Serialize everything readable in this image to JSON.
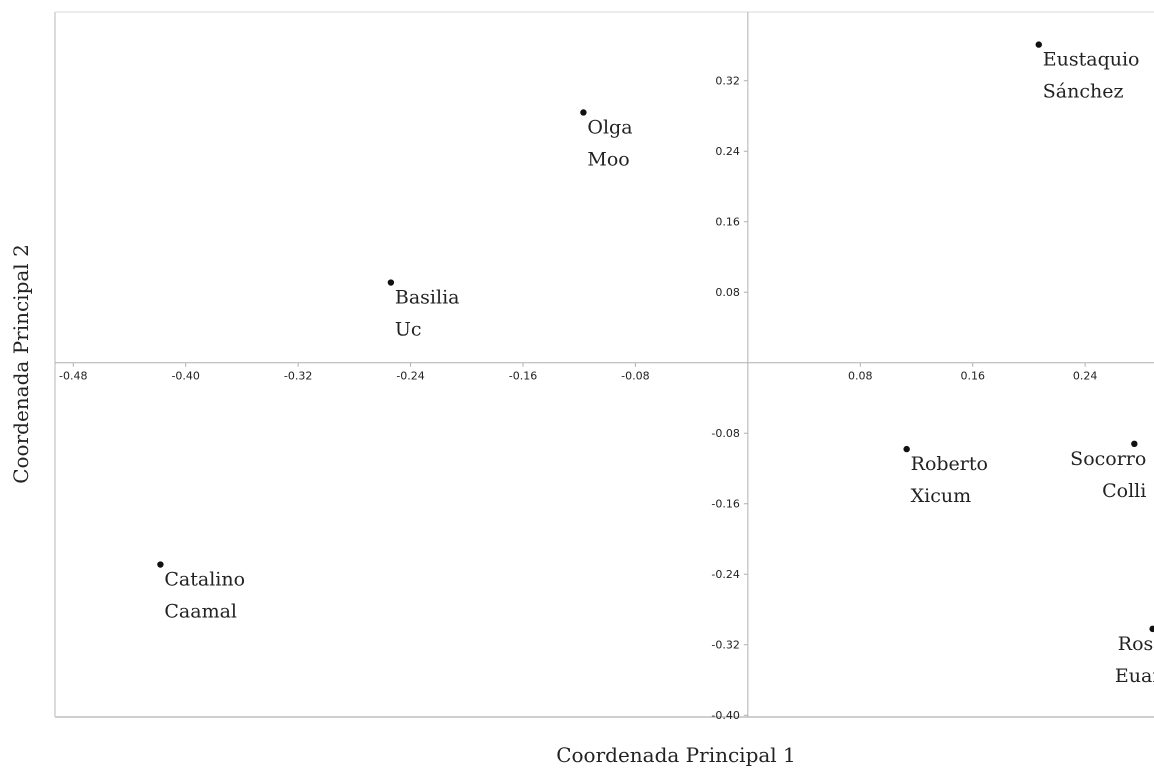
{
  "chart_data": {
    "type": "scatter",
    "xlabel": "Coordenada Principal 1",
    "ylabel": "Coordenada Principal 2",
    "xlim": [
      -0.493,
      0.289
    ],
    "ylim": [
      -0.402,
      0.398
    ],
    "x_ticks": [
      "-0.48",
      "-0.40",
      "-0.32",
      "-0.24",
      "-0.16",
      "-0.08",
      "0.08",
      "0.16",
      "0.24"
    ],
    "x_tick_values": [
      -0.48,
      -0.4,
      -0.32,
      -0.24,
      -0.16,
      -0.08,
      0.08,
      0.16,
      0.24
    ],
    "y_ticks": [
      "0.32",
      "0.24",
      "0.16",
      "0.08",
      "-0.08",
      "-0.16",
      "-0.24",
      "-0.32",
      "-0.40"
    ],
    "y_tick_values": [
      0.32,
      0.24,
      0.16,
      0.08,
      -0.08,
      -0.16,
      -0.24,
      -0.32,
      -0.4
    ],
    "grid": false,
    "points": [
      {
        "x": -0.117,
        "y": 0.284,
        "label": [
          "Olga",
          "Moo"
        ],
        "label_side": "right"
      },
      {
        "x": 0.207,
        "y": 0.361,
        "label": [
          "Eustaquio",
          "Sánchez"
        ],
        "label_side": "right"
      },
      {
        "x": -0.254,
        "y": 0.091,
        "label": [
          "Basilia",
          "Uc"
        ],
        "label_side": "right"
      },
      {
        "x": 0.113,
        "y": -0.098,
        "label": [
          "Roberto",
          "Xicum"
        ],
        "label_side": "right"
      },
      {
        "x": 0.275,
        "y": -0.092,
        "label": [
          "Socorro",
          "Colli"
        ],
        "label_side": "left"
      },
      {
        "x": -0.418,
        "y": -0.229,
        "label": [
          "Catalino",
          "Caamal"
        ],
        "label_side": "right"
      },
      {
        "x": 0.288,
        "y": -0.302,
        "label": [
          "Rosa",
          "Euan"
        ],
        "label_side": "left"
      }
    ]
  }
}
